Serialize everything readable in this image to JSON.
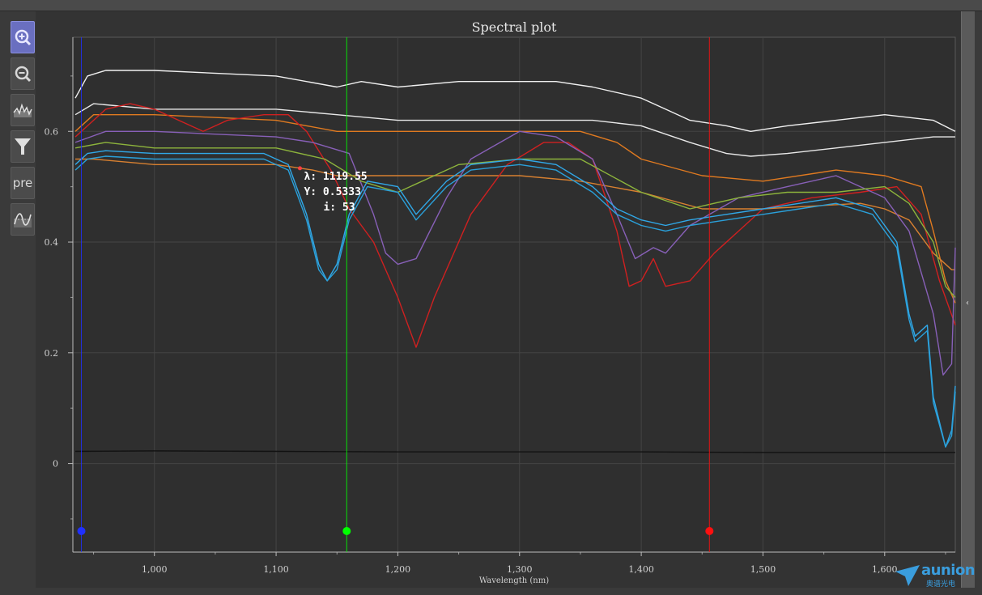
{
  "window": {
    "title": "Spectral plot"
  },
  "toolbar": {
    "buttons": [
      {
        "name": "zoom-in-icon",
        "label": ""
      },
      {
        "name": "zoom-out-icon",
        "label": ""
      },
      {
        "name": "spectrum-icon",
        "label": ""
      },
      {
        "name": "filter-icon",
        "label": ""
      },
      {
        "name": "preprocess-button",
        "label": "pre"
      },
      {
        "name": "fit-curve-icon",
        "label": ""
      }
    ]
  },
  "cursor_readout": {
    "lambda": "λ: 1119.55",
    "y": "Y:  0.5333",
    "i": "i: 53"
  },
  "markers": [
    {
      "wavelength": 940,
      "color": "#2030ff"
    },
    {
      "wavelength": 1158,
      "color": "#00ff00"
    },
    {
      "wavelength": 1456,
      "color": "#ff1010"
    }
  ],
  "logo": {
    "word": "aunion",
    "sub": "奥谱光电"
  },
  "colors": {
    "background": "#333333",
    "grid": "#444444",
    "axis": "#bdbdbd"
  },
  "chart_data": {
    "type": "line",
    "title": "Spectral plot",
    "xlabel": "Wavelength (nm)",
    "ylabel": "",
    "xlim": [
      933,
      1658
    ],
    "ylim": [
      -0.16,
      0.77
    ],
    "xticks": [
      1000,
      1100,
      1200,
      1300,
      1400,
      1500,
      1600
    ],
    "xtick_labels": [
      "1,000",
      "1,100",
      "1,200",
      "1,300",
      "1,400",
      "1,500",
      "1,600"
    ],
    "yticks": [
      0,
      0.2,
      0.4,
      0.6
    ],
    "ytick_labels": [
      "0",
      "0.2",
      "0.4",
      "0.6"
    ],
    "grid": true,
    "series": [
      {
        "color": "#f0f0f0",
        "x": [
          935,
          945,
          960,
          1000,
          1100,
          1150,
          1170,
          1200,
          1250,
          1300,
          1330,
          1360,
          1400,
          1420,
          1440,
          1470,
          1490,
          1520,
          1560,
          1600,
          1640,
          1658
        ],
        "y": [
          0.66,
          0.7,
          0.71,
          0.71,
          0.7,
          0.68,
          0.69,
          0.68,
          0.69,
          0.69,
          0.69,
          0.68,
          0.66,
          0.64,
          0.62,
          0.61,
          0.6,
          0.61,
          0.62,
          0.63,
          0.62,
          0.6
        ]
      },
      {
        "color": "#e8e8e8",
        "x": [
          935,
          950,
          1000,
          1100,
          1150,
          1200,
          1260,
          1300,
          1330,
          1360,
          1400,
          1440,
          1470,
          1490,
          1520,
          1560,
          1600,
          1640,
          1658
        ],
        "y": [
          0.63,
          0.65,
          0.64,
          0.64,
          0.63,
          0.62,
          0.62,
          0.62,
          0.62,
          0.62,
          0.61,
          0.58,
          0.56,
          0.555,
          0.56,
          0.57,
          0.58,
          0.59,
          0.59
        ]
      },
      {
        "color": "#e07a20",
        "x": [
          935,
          950,
          1000,
          1100,
          1125,
          1150,
          1200,
          1300,
          1350,
          1380,
          1400,
          1450,
          1500,
          1560,
          1600,
          1630,
          1640,
          1650,
          1658
        ],
        "y": [
          0.6,
          0.63,
          0.63,
          0.62,
          0.61,
          0.6,
          0.6,
          0.6,
          0.6,
          0.58,
          0.55,
          0.52,
          0.51,
          0.53,
          0.52,
          0.5,
          0.42,
          0.33,
          0.29
        ]
      },
      {
        "color": "#d88030",
        "x": [
          935,
          950,
          1000,
          1100,
          1130,
          1150,
          1200,
          1300,
          1350,
          1400,
          1450,
          1500,
          1580,
          1600,
          1620,
          1640,
          1655,
          1658
        ],
        "y": [
          0.55,
          0.55,
          0.54,
          0.54,
          0.53,
          0.52,
          0.52,
          0.52,
          0.51,
          0.49,
          0.46,
          0.46,
          0.47,
          0.46,
          0.44,
          0.38,
          0.35,
          0.35
        ]
      },
      {
        "color": "#d02020",
        "x": [
          935,
          960,
          980,
          1000,
          1020,
          1040,
          1060,
          1090,
          1110,
          1125,
          1145,
          1160,
          1180,
          1200,
          1215,
          1230,
          1260,
          1290,
          1320,
          1340,
          1360,
          1380,
          1390,
          1400,
          1410,
          1420,
          1440,
          1460,
          1480,
          1500,
          1540,
          1580,
          1610,
          1630,
          1645,
          1658
        ],
        "y": [
          0.59,
          0.64,
          0.65,
          0.64,
          0.62,
          0.6,
          0.62,
          0.63,
          0.63,
          0.6,
          0.53,
          0.46,
          0.4,
          0.3,
          0.21,
          0.3,
          0.45,
          0.54,
          0.58,
          0.58,
          0.55,
          0.42,
          0.32,
          0.33,
          0.37,
          0.32,
          0.33,
          0.38,
          0.42,
          0.46,
          0.48,
          0.49,
          0.5,
          0.45,
          0.33,
          0.25
        ]
      },
      {
        "color": "#8860b8",
        "x": [
          935,
          960,
          1000,
          1100,
          1130,
          1160,
          1180,
          1190,
          1200,
          1215,
          1240,
          1260,
          1300,
          1330,
          1360,
          1380,
          1395,
          1410,
          1420,
          1440,
          1480,
          1520,
          1560,
          1600,
          1620,
          1640,
          1648,
          1655,
          1658
        ],
        "y": [
          0.58,
          0.6,
          0.6,
          0.59,
          0.58,
          0.56,
          0.45,
          0.38,
          0.36,
          0.37,
          0.48,
          0.55,
          0.6,
          0.59,
          0.55,
          0.45,
          0.37,
          0.39,
          0.38,
          0.43,
          0.48,
          0.5,
          0.52,
          0.48,
          0.42,
          0.27,
          0.16,
          0.18,
          0.39
        ]
      },
      {
        "color": "#8db43c",
        "x": [
          935,
          960,
          1000,
          1100,
          1140,
          1170,
          1200,
          1250,
          1300,
          1350,
          1400,
          1440,
          1480,
          1520,
          1560,
          1600,
          1620,
          1640,
          1650,
          1658
        ],
        "y": [
          0.57,
          0.58,
          0.57,
          0.57,
          0.55,
          0.51,
          0.49,
          0.54,
          0.55,
          0.55,
          0.49,
          0.46,
          0.48,
          0.49,
          0.49,
          0.5,
          0.47,
          0.4,
          0.32,
          0.3
        ]
      },
      {
        "color": "#30a8e8",
        "x": [
          935,
          945,
          960,
          1000,
          1090,
          1110,
          1125,
          1135,
          1142,
          1150,
          1160,
          1175,
          1200,
          1215,
          1240,
          1260,
          1300,
          1330,
          1360,
          1380,
          1400,
          1420,
          1440,
          1470,
          1500,
          1530,
          1560,
          1590,
          1610,
          1620,
          1625,
          1635,
          1640,
          1650,
          1655,
          1658
        ],
        "y": [
          0.54,
          0.56,
          0.565,
          0.56,
          0.56,
          0.54,
          0.45,
          0.36,
          0.33,
          0.36,
          0.45,
          0.51,
          0.5,
          0.45,
          0.51,
          0.54,
          0.55,
          0.54,
          0.5,
          0.46,
          0.44,
          0.43,
          0.44,
          0.45,
          0.46,
          0.47,
          0.48,
          0.46,
          0.4,
          0.27,
          0.23,
          0.25,
          0.12,
          0.03,
          0.06,
          0.14
        ]
      },
      {
        "color": "#2aa0da",
        "x": [
          935,
          945,
          960,
          1000,
          1090,
          1110,
          1125,
          1135,
          1142,
          1150,
          1160,
          1175,
          1200,
          1215,
          1240,
          1260,
          1300,
          1330,
          1360,
          1380,
          1400,
          1420,
          1440,
          1470,
          1500,
          1530,
          1560,
          1590,
          1610,
          1620,
          1625,
          1635,
          1640,
          1650,
          1655,
          1658
        ],
        "y": [
          0.53,
          0.55,
          0.555,
          0.55,
          0.55,
          0.53,
          0.44,
          0.35,
          0.33,
          0.35,
          0.44,
          0.5,
          0.49,
          0.44,
          0.5,
          0.53,
          0.54,
          0.53,
          0.49,
          0.45,
          0.43,
          0.42,
          0.43,
          0.44,
          0.45,
          0.46,
          0.47,
          0.45,
          0.39,
          0.26,
          0.22,
          0.24,
          0.11,
          0.03,
          0.05,
          0.13
        ]
      },
      {
        "color": "#101010",
        "x": [
          935,
          1000,
          1100,
          1200,
          1300,
          1400,
          1500,
          1600,
          1658
        ],
        "y": [
          0.022,
          0.023,
          0.022,
          0.021,
          0.021,
          0.021,
          0.02,
          0.02,
          0.02
        ]
      }
    ]
  }
}
